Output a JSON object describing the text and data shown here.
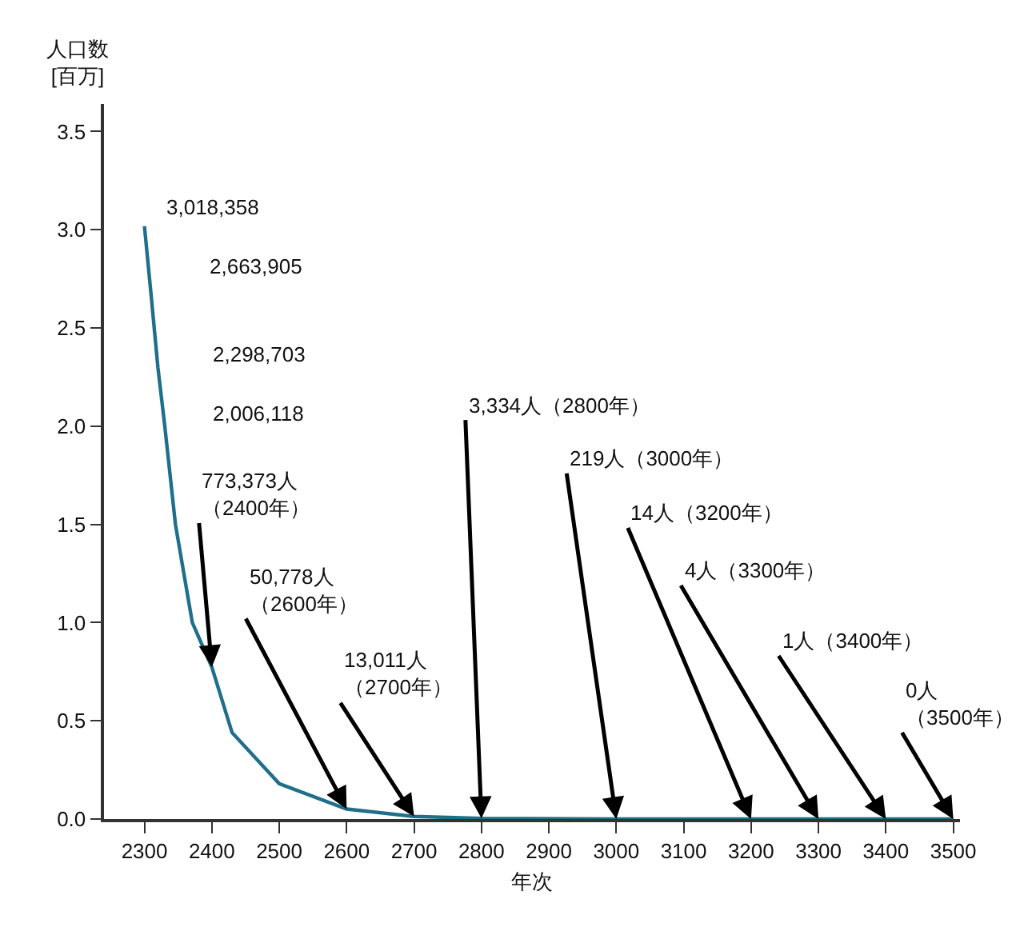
{
  "chart_data": {
    "type": "line",
    "ylabel": "人口数\n[百万]",
    "xlabel": "年次",
    "x": [
      2300,
      2310,
      2320,
      2330,
      2346,
      2371,
      2400,
      2430,
      2500,
      2600,
      2700,
      2800,
      3000,
      3200,
      3300,
      3400,
      3500
    ],
    "series": [
      {
        "color": "#1f6f8b",
        "values": [
          3.018358,
          2.663905,
          2.298703,
          2.006118,
          1.5,
          1.0,
          0.773373,
          0.44,
          0.18,
          0.050778,
          0.013011,
          0.003334,
          0.000219,
          1.4e-05,
          4e-06,
          1e-06,
          0
        ]
      }
    ],
    "xlim": [
      2240,
      3510
    ],
    "ylim": [
      0,
      3.64
    ],
    "xticks": [
      2300,
      2400,
      2500,
      2600,
      2700,
      2800,
      2900,
      3000,
      3100,
      3200,
      3300,
      3400,
      3500
    ],
    "yticks": [
      {
        "value": 0,
        "label": "0.0"
      },
      {
        "value": 0.5,
        "label": "0.5"
      },
      {
        "value": 1,
        "label": "1.0"
      },
      {
        "value": 1.5,
        "label": "1.5"
      },
      {
        "value": 2,
        "label": "2.0"
      },
      {
        "value": 2.5,
        "label": "2.5"
      },
      {
        "value": 3,
        "label": "3.0"
      },
      {
        "value": 3.5,
        "label": "3.5"
      }
    ],
    "legend": false,
    "marker": "none",
    "line_style": "solid",
    "annotations": [
      "3,018,358",
      "2,663,905",
      "2,298,703",
      "2,006,118",
      {
        "text": "773,373人（2400年）",
        "x": 2400,
        "y": 0.773373
      },
      {
        "text": "50,778人（2600年）",
        "x": 2600,
        "y": 0.050778
      },
      {
        "text": "13,011人（2700年）",
        "x": 2700,
        "y": 0.013011
      },
      {
        "text": "3,334人（2800年）",
        "x": 2800,
        "y": 0.003334
      },
      {
        "text": "219人（3000年）",
        "x": 3000,
        "y": 0.000219
      },
      {
        "text": "14人（3200年）",
        "x": 3200,
        "y": 1.4e-05
      },
      {
        "text": "4人（3300年）",
        "x": 3300,
        "y": 4e-06
      },
      {
        "text": "1人（3400年）",
        "x": 3400,
        "y": 1e-06
      },
      {
        "text": "0人（3500年）",
        "x": 3500,
        "y": 0
      }
    ]
  }
}
